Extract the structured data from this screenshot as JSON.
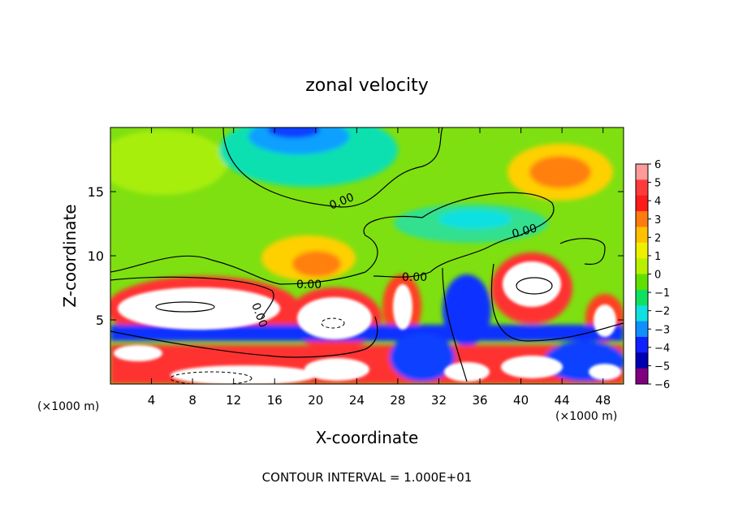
{
  "chart_data": {
    "type": "heatmap",
    "title": "zonal velocity",
    "xlabel": "X-coordinate",
    "ylabel": "Z-coordinate",
    "x_unit": "(×1000 m)",
    "footer": "CONTOUR INTERVAL = 1.000E+01",
    "xlim": [
      0,
      50
    ],
    "ylim": [
      0,
      20
    ],
    "x_ticks": [
      4,
      8,
      12,
      16,
      20,
      24,
      28,
      32,
      36,
      40,
      44,
      48
    ],
    "y_ticks": [
      5,
      10,
      15
    ],
    "colorbar": {
      "ticks": [
        "6",
        "5",
        "4",
        "3",
        "2",
        "1",
        "0",
        "−1",
        "−2",
        "−3",
        "−4",
        "−5",
        "−6"
      ],
      "colors": [
        "#ff9a9a",
        "#ff3a3a",
        "#ff1a1a",
        "#ff7a10",
        "#ffc000",
        "#eef000",
        "#b8f000",
        "#60e000",
        "#10e060",
        "#10e0e0",
        "#1090ff",
        "#1020ff",
        "#0000b0",
        "#800080"
      ]
    },
    "contour_labels": [
      "0.00",
      "0.00",
      "0.00",
      "0.00",
      "0.00"
    ]
  }
}
